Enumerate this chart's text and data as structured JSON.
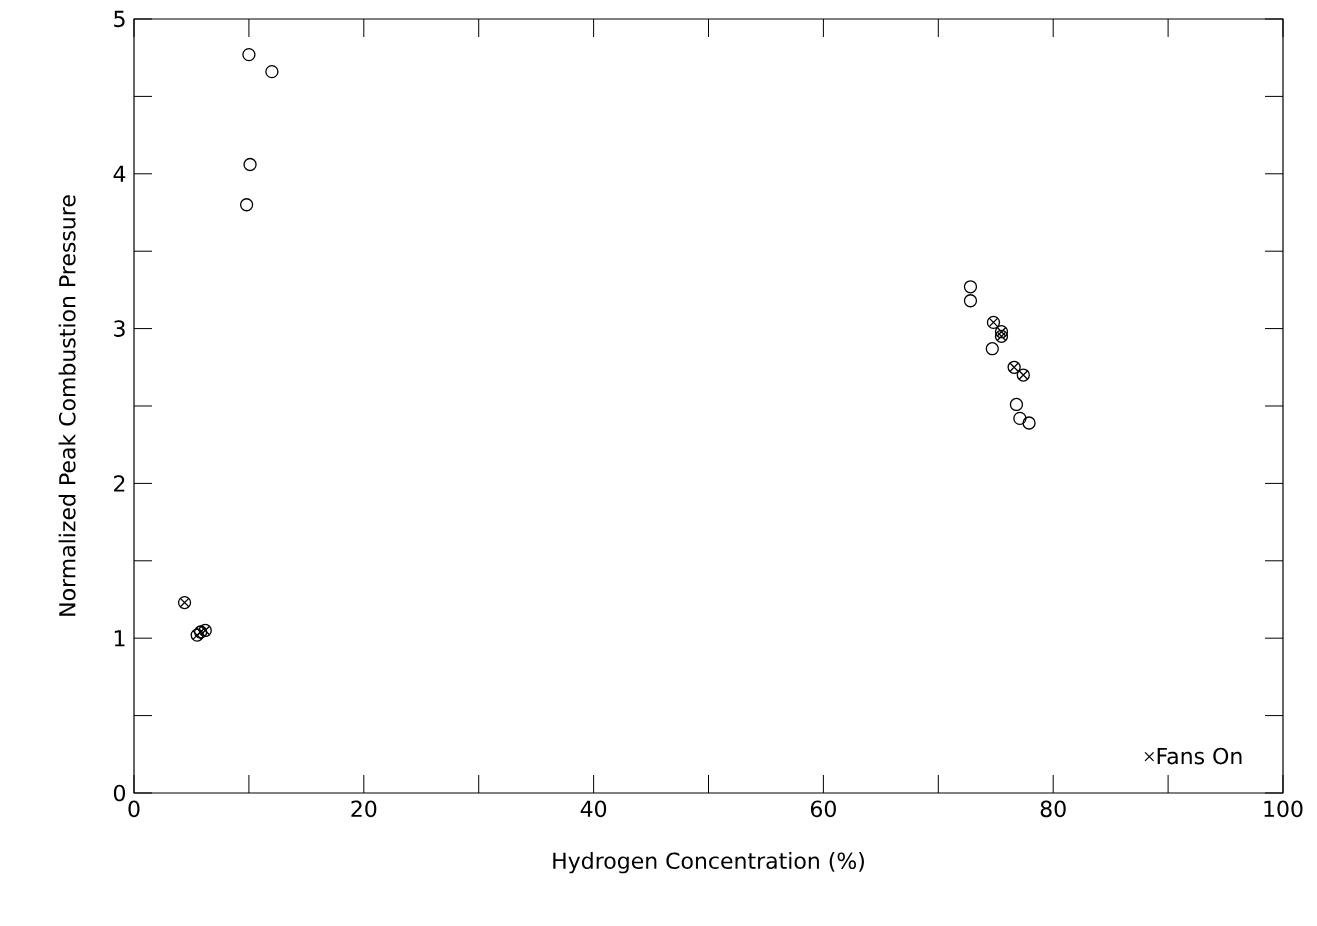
{
  "chart_data": {
    "type": "scatter",
    "xlabel": "Hydrogen Concentration (%)",
    "ylabel": "Normalized Peak Combustion Pressure",
    "xlim": [
      0,
      100
    ],
    "ylim": [
      0,
      5
    ],
    "xticks": [
      0,
      20,
      40,
      60,
      80,
      100
    ],
    "yticks": [
      0,
      1,
      2,
      3,
      4,
      5
    ],
    "grid": false,
    "legend": "bottom right",
    "series": [
      {
        "color": "#000000",
        "marker": "circle",
        "x": [
          10.0,
          12.0,
          10.1,
          9.8,
          4.4,
          5.5,
          5.8,
          6.2,
          72.8,
          72.8,
          74.8,
          75.5,
          75.5,
          74.7,
          76.6,
          77.4,
          76.8,
          77.1,
          77.9
        ],
        "values": [
          4.77,
          4.66,
          4.06,
          3.8,
          1.23,
          1.02,
          1.04,
          1.05,
          3.27,
          3.18,
          3.04,
          2.98,
          2.95,
          2.87,
          2.75,
          2.7,
          2.51,
          2.42,
          2.39
        ]
      },
      {
        "name": "Fans On",
        "color": "#000000",
        "marker": "cross",
        "x": [
          4.4,
          5.5,
          5.8,
          6.2,
          74.8,
          75.5,
          75.5,
          76.6,
          77.4
        ],
        "values": [
          1.23,
          1.02,
          1.04,
          1.05,
          3.04,
          2.98,
          2.95,
          2.75,
          2.7
        ]
      }
    ]
  }
}
